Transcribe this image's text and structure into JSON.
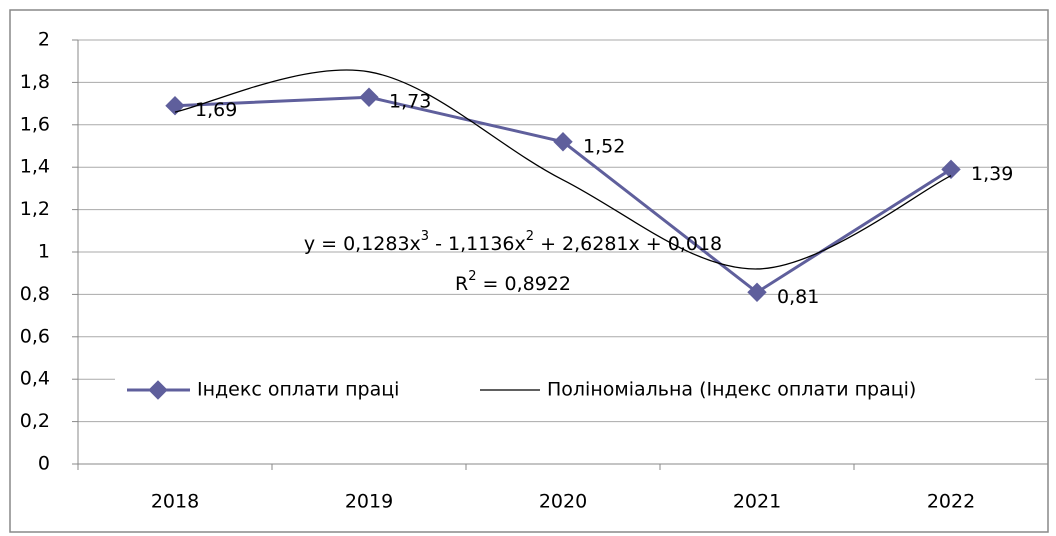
{
  "chart_data": {
    "type": "line",
    "categories": [
      "2018",
      "2019",
      "2020",
      "2021",
      "2022"
    ],
    "series": [
      {
        "name": "Індекс оплати праці",
        "color": "#5f5f9c",
        "values": [
          1.69,
          1.73,
          1.52,
          0.81,
          1.39
        ],
        "value_labels": [
          "1,69",
          "1,73",
          "1,52",
          "0,81",
          "1,39"
        ],
        "marker": "diamond"
      },
      {
        "name": "Поліноміальна (Індекс оплати праці)",
        "color": "#000000",
        "values": [
          1.66,
          1.85,
          1.34,
          0.92,
          1.36
        ],
        "trendline": true
      }
    ],
    "trendline_equation": [
      "y = 0,1283x",
      "3",
      " - 1,1136x",
      "2",
      " + 2,6281x + 0,018"
    ],
    "trendline_r2": [
      "R",
      "2",
      " = 0,8922"
    ],
    "ylim": [
      0,
      2
    ],
    "yticks": [
      0,
      {
        "value": 0.2,
        "label": "0,2"
      },
      {
        "value": 0.4,
        "label": "0,4"
      },
      {
        "value": 0.6,
        "label": "0,6"
      },
      {
        "value": 0.8,
        "label": "0,8"
      },
      1,
      {
        "value": 1.2,
        "label": "1,2"
      },
      {
        "value": 1.4,
        "label": "1,4"
      },
      {
        "value": 1.6,
        "label": "1,6"
      },
      {
        "value": 1.8,
        "label": "1,8"
      },
      2
    ],
    "grid": true,
    "legend": "bottom"
  }
}
